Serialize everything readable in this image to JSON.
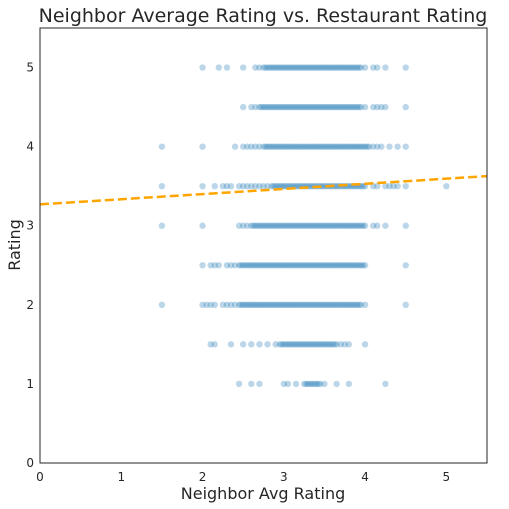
{
  "chart_data": {
    "type": "scatter",
    "title": "Neighbor Average Rating vs. Restaurant Rating",
    "xlabel": "Neighbor Avg Rating",
    "ylabel": "Rating",
    "xlim": [
      0,
      5.5
    ],
    "ylim": [
      0,
      5.5
    ],
    "xticks": [
      "0",
      "1",
      "2",
      "3",
      "4",
      "5"
    ],
    "yticks": [
      "0",
      "1",
      "2",
      "3",
      "4",
      "5"
    ],
    "grid": false,
    "point_color": "#1f77b4",
    "point_alpha": 0.3,
    "trend_color": "#ffa500",
    "trend_line": {
      "intercept": 3.27,
      "slope": 0.065
    },
    "rating_levels": [
      {
        "y": 5.0,
        "x_ranges": [
          [
            2.75,
            3.95
          ]
        ],
        "outliers": [
          2.0,
          2.2,
          2.3,
          2.5,
          2.65,
          2.7,
          4.0,
          4.1,
          4.15,
          4.25,
          4.5
        ]
      },
      {
        "y": 4.5,
        "x_ranges": [
          [
            2.7,
            3.95
          ]
        ],
        "outliers": [
          2.5,
          2.6,
          2.65,
          4.0,
          4.1,
          4.15,
          4.2,
          4.25,
          4.5
        ]
      },
      {
        "y": 4.0,
        "x_ranges": [
          [
            2.75,
            4.05
          ]
        ],
        "outliers": [
          1.5,
          2.0,
          2.4,
          2.5,
          2.55,
          2.6,
          2.65,
          2.7,
          4.1,
          4.15,
          4.2,
          4.3,
          4.4,
          4.5
        ]
      },
      {
        "y": 3.5,
        "x_ranges": [
          [
            2.85,
            4.0
          ]
        ],
        "outliers": [
          1.5,
          2.0,
          2.15,
          2.25,
          2.3,
          2.35,
          2.45,
          2.5,
          2.55,
          2.6,
          2.65,
          2.7,
          2.75,
          2.8,
          4.1,
          4.15,
          4.25,
          4.3,
          4.35,
          4.4,
          4.5,
          5.0
        ]
      },
      {
        "y": 3.0,
        "x_ranges": [
          [
            2.6,
            4.0
          ]
        ],
        "outliers": [
          1.5,
          2.0,
          2.45,
          2.5,
          2.55,
          4.1,
          4.15,
          4.25,
          4.5
        ]
      },
      {
        "y": 2.5,
        "x_ranges": [
          [
            2.45,
            4.0
          ]
        ],
        "outliers": [
          2.0,
          2.1,
          2.15,
          2.2,
          2.3,
          2.35,
          2.4,
          4.5
        ]
      },
      {
        "y": 2.0,
        "x_ranges": [
          [
            2.45,
            3.95
          ]
        ],
        "outliers": [
          1.5,
          2.0,
          2.05,
          2.1,
          2.15,
          2.25,
          2.3,
          2.35,
          2.4,
          4.0,
          4.5
        ]
      },
      {
        "y": 1.5,
        "x_ranges": [
          [
            2.95,
            3.65
          ]
        ],
        "outliers": [
          2.1,
          2.15,
          2.35,
          2.5,
          2.6,
          2.7,
          2.8,
          2.9,
          3.7,
          3.75,
          3.8,
          4.0
        ]
      },
      {
        "y": 1.0,
        "x_ranges": [
          [
            3.25,
            3.45
          ]
        ],
        "outliers": [
          2.45,
          2.6,
          2.7,
          3.0,
          3.05,
          3.15,
          3.5,
          3.65,
          3.8,
          4.25
        ]
      }
    ]
  }
}
